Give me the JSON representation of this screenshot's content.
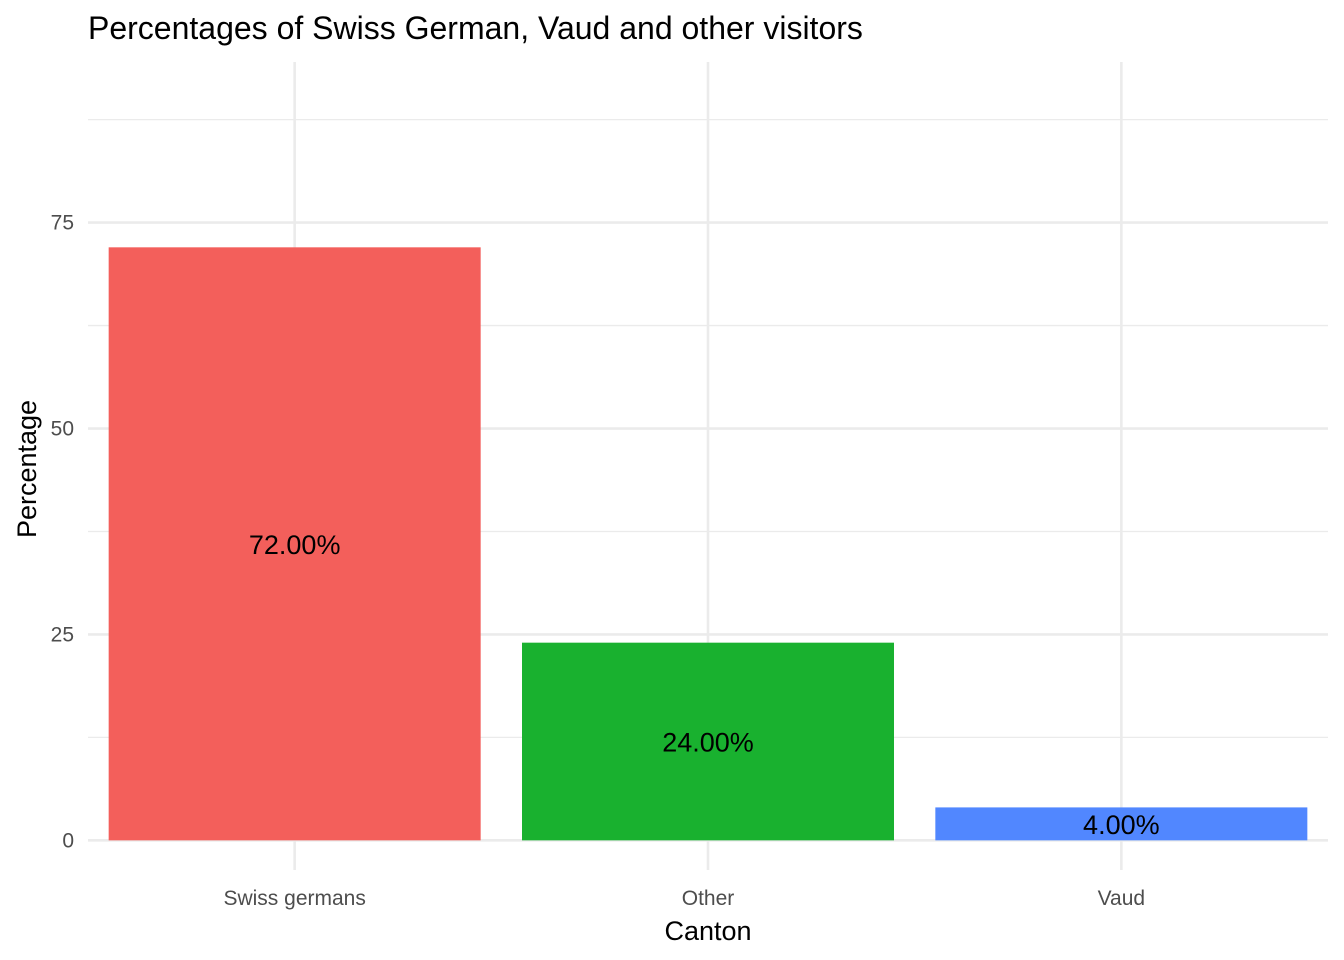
{
  "chart_data": {
    "type": "bar",
    "title": "Percentages of Swiss German, Vaud and other visitors",
    "xlabel": "Canton",
    "ylabel": "Percentage",
    "categories": [
      "Swiss germans",
      "Other",
      "Vaud"
    ],
    "values": [
      72,
      24,
      4
    ],
    "data_labels": [
      "72.00%",
      "24.00%",
      "4.00%"
    ],
    "colors": [
      "#f35f5b",
      "#19b12f",
      "#5187ff"
    ],
    "ylim": [
      -3.6,
      94.5
    ],
    "yticks": [
      0,
      25,
      50,
      75
    ],
    "grid": true,
    "legend": "none"
  }
}
